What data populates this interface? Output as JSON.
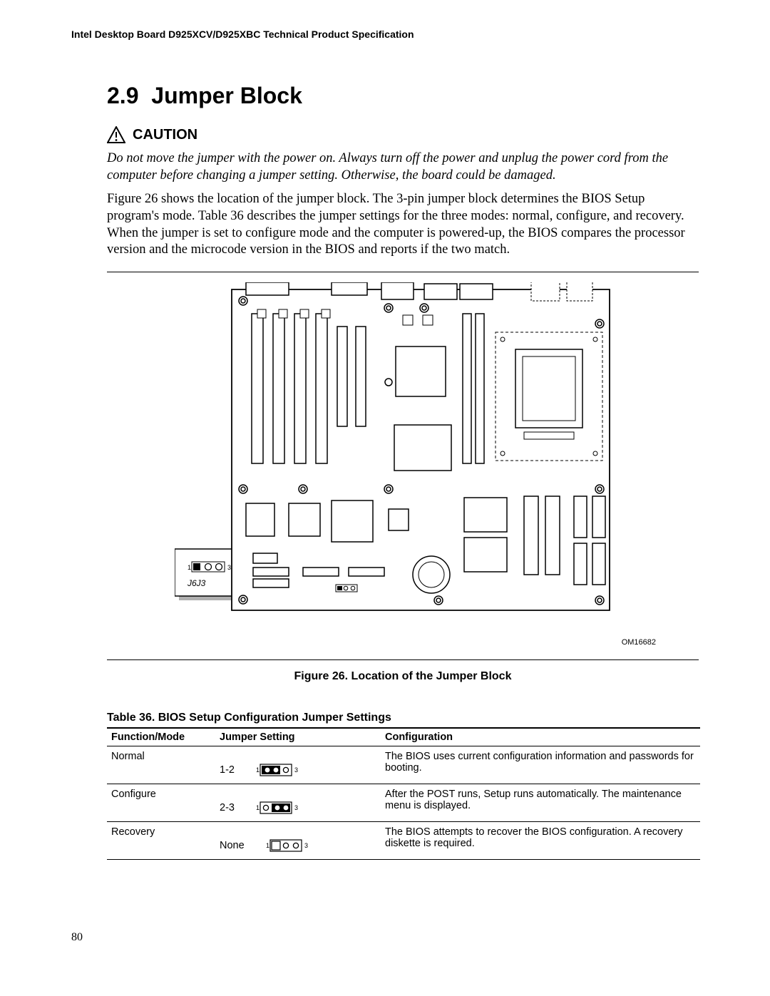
{
  "header": "Intel Desktop Board D925XCV/D925XBC Technical Product Specification",
  "section_number": "2.9",
  "section_title": "Jumper Block",
  "caution_label": "CAUTION",
  "caution_text": "Do not move the jumper with the power on.  Always turn off the power and unplug the power cord from the computer before changing a jumper setting.  Otherwise, the board could be damaged.",
  "body_para": "Figure 26 shows the location of the jumper block.  The 3-pin jumper block determines the BIOS Setup program's mode.  Table 36 describes the jumper settings for the three modes:  normal, configure, and recovery.  When the jumper is set to configure mode and the computer is powered-up, the BIOS compares the processor version and the microcode version in the BIOS and reports if the two match.",
  "figure": {
    "jumper_label": "J6J3",
    "om_id": "OM16682",
    "caption": "Figure 26.  Location of the Jumper Block"
  },
  "table": {
    "title": "Table 36.    BIOS Setup Configuration Jumper Settings",
    "columns": [
      "Function/Mode",
      "Jumper Setting",
      "Configuration"
    ],
    "rows": [
      {
        "mode": "Normal",
        "setting": "1-2",
        "jumper": "12",
        "config": "The BIOS uses current configuration information and passwords for booting."
      },
      {
        "mode": "Configure",
        "setting": "2-3",
        "jumper": "23",
        "config": "After the POST runs, Setup runs automatically.  The maintenance menu is displayed."
      },
      {
        "mode": "Recovery",
        "setting": "None",
        "jumper": "none",
        "config": "The BIOS attempts to recover the BIOS configuration.  A recovery diskette is required."
      }
    ]
  },
  "page_number": "80",
  "colors": {
    "text": "#000000",
    "bg": "#ffffff",
    "shadow": "#b0b0b0"
  }
}
